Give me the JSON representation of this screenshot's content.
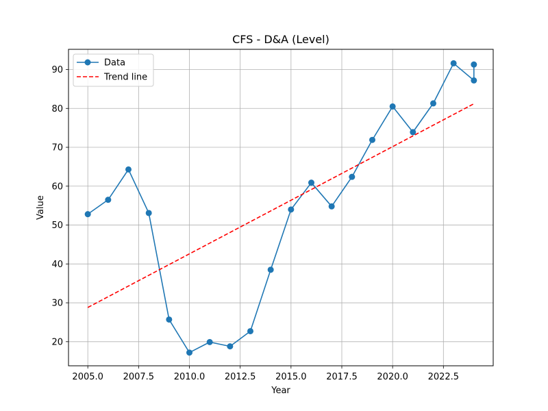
{
  "chart_data": {
    "type": "line",
    "title": "CFS - D&A (Level)",
    "xlabel": "Year",
    "ylabel": "Value",
    "xlim": [
      2004.05,
      2024.95
    ],
    "ylim": [
      13.8,
      95.2
    ],
    "x_ticks": [
      2005.0,
      2007.5,
      2010.0,
      2012.5,
      2015.0,
      2017.5,
      2020.0,
      2022.5
    ],
    "x_tick_labels": [
      "2005.0",
      "2007.5",
      "2010.0",
      "2012.5",
      "2015.0",
      "2017.5",
      "2020.0",
      "2022.5"
    ],
    "y_ticks": [
      20,
      30,
      40,
      50,
      60,
      70,
      80,
      90
    ],
    "y_tick_labels": [
      "20",
      "30",
      "40",
      "50",
      "60",
      "70",
      "80",
      "90"
    ],
    "grid": true,
    "legend_position": "top-left",
    "series": [
      {
        "name": "Data",
        "style": "line-with-markers",
        "color": "#1f77b4",
        "x": [
          2005,
          2006,
          2007,
          2008,
          2009,
          2010,
          2011,
          2012,
          2013,
          2014,
          2015,
          2016,
          2017,
          2018,
          2019,
          2020,
          2021,
          2022,
          2023,
          2024,
          2024
        ],
        "y": [
          52.8,
          56.5,
          64.3,
          53.1,
          25.7,
          17.2,
          19.9,
          18.8,
          22.7,
          38.5,
          54.0,
          60.9,
          54.8,
          62.4,
          71.9,
          80.5,
          73.9,
          81.3,
          91.6,
          87.2,
          91.3
        ]
      },
      {
        "name": "Trend line",
        "style": "dashed",
        "color": "#ff0000",
        "x": [
          2005,
          2024
        ],
        "y": [
          28.8,
          81.2
        ]
      }
    ]
  }
}
